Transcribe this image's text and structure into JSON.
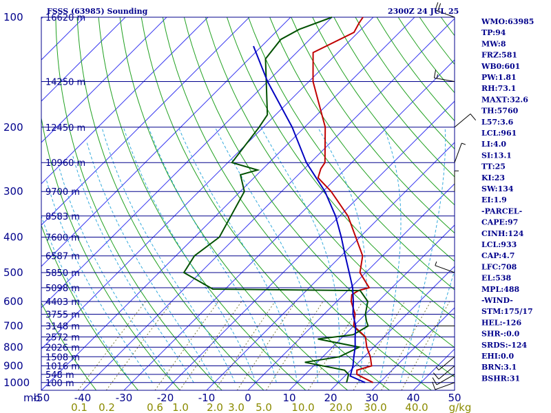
{
  "header": {
    "title": "FSSS (63985) Sounding",
    "time": "2300Z 24 JUL 25"
  },
  "chart_data": {
    "type": "line",
    "chart": "Skew-T log-P sounding",
    "pressure_levels": [
      100,
      200,
      300,
      400,
      500,
      600,
      700,
      800,
      900,
      1000
    ],
    "pressure_labels": [
      "100",
      "200",
      "300",
      "400",
      "500",
      "600",
      "700",
      "800",
      "900",
      "1000"
    ],
    "pressure_unit": "mb",
    "height_lines": [
      {
        "p": 100,
        "label": "16620 m"
      },
      {
        "p": 150,
        "label": "14250 m"
      },
      {
        "p": 200,
        "label": "12450 m"
      },
      {
        "p": 250,
        "label": "10960 m"
      },
      {
        "p": 300,
        "label": "9700 m"
      },
      {
        "p": 350,
        "label": "8583 m"
      },
      {
        "p": 400,
        "label": "7600 m"
      },
      {
        "p": 450,
        "label": "6587 m"
      },
      {
        "p": 500,
        "label": "5850 m"
      },
      {
        "p": 550,
        "label": "5098 m"
      },
      {
        "p": 600,
        "label": "4403 m"
      },
      {
        "p": 650,
        "label": "3755 m"
      },
      {
        "p": 700,
        "label": "3148 m"
      },
      {
        "p": 750,
        "label": "2572 m"
      },
      {
        "p": 800,
        "label": "2026 m"
      },
      {
        "p": 850,
        "label": "1508 m"
      },
      {
        "p": 900,
        "label": "1016 m"
      },
      {
        "p": 950,
        "label": "548 m"
      },
      {
        "p": 1000,
        "label": "100 m"
      }
    ],
    "temperature_ticks": [
      -50,
      -40,
      -30,
      -20,
      -10,
      0,
      10,
      20,
      30,
      40,
      50
    ],
    "temperature_tick_labels": [
      "-50",
      "-40",
      "-30",
      "-20",
      "-10",
      "0",
      "10",
      "20",
      "30",
      "40",
      "50"
    ],
    "mixing_ratio_labels": [
      "0.1",
      "0.2",
      "0.6",
      "1.0",
      "2.0",
      "3.0",
      "5.0",
      "10.0",
      "20.0",
      "30.0",
      "40.0",
      "g/kg"
    ],
    "xlim": [
      -50,
      50
    ],
    "ylim": [
      100,
      1050
    ],
    "series": [
      {
        "key": "temperature",
        "points": [
          [
            1000,
            28.4
          ],
          [
            950,
            22.5
          ],
          [
            925,
            21.5
          ],
          [
            900,
            24.0
          ],
          [
            850,
            21.5
          ],
          [
            800,
            18.3
          ],
          [
            750,
            15.5
          ],
          [
            700,
            10.0
          ],
          [
            650,
            7.5
          ],
          [
            600,
            3.5
          ],
          [
            575,
            2.0
          ],
          [
            560,
            2.6
          ],
          [
            550,
            4.5
          ],
          [
            500,
            -1.4
          ],
          [
            450,
            -4.8
          ],
          [
            400,
            -11.0
          ],
          [
            350,
            -18.0
          ],
          [
            300,
            -28.0
          ],
          [
            275,
            -34.5
          ],
          [
            260,
            -36.0
          ],
          [
            250,
            -36.5
          ],
          [
            200,
            -45.0
          ],
          [
            150,
            -59.0
          ],
          [
            125,
            -66.0
          ],
          [
            110,
            -61.0
          ],
          [
            104,
            -62.0
          ],
          [
            100,
            -62.5
          ]
        ]
      },
      {
        "key": "dewpoint",
        "points": [
          [
            1000,
            22.0
          ],
          [
            950,
            20.5
          ],
          [
            925,
            18.5
          ],
          [
            880,
            7.0
          ],
          [
            850,
            14.0
          ],
          [
            800,
            16.5
          ],
          [
            760,
            4.5
          ],
          [
            740,
            12.0
          ],
          [
            700,
            13.5
          ],
          [
            680,
            12.0
          ],
          [
            650,
            10.0
          ],
          [
            600,
            7.5
          ],
          [
            560,
            3.0
          ],
          [
            555,
            -33.0
          ],
          [
            500,
            -44.0
          ],
          [
            450,
            -45.5
          ],
          [
            400,
            -44.0
          ],
          [
            300,
            -49.0
          ],
          [
            270,
            -54.0
          ],
          [
            262,
            -51.0
          ],
          [
            250,
            -59.0
          ],
          [
            200,
            -61.0
          ],
          [
            185,
            -62.0
          ],
          [
            130,
            -76.0
          ],
          [
            115,
            -77.0
          ],
          [
            108,
            -75.0
          ],
          [
            100,
            -70.0
          ]
        ]
      },
      {
        "key": "parcel",
        "points": [
          [
            1000,
            26.5
          ],
          [
            960,
            21.3
          ],
          [
            933,
            20.5
          ],
          [
            900,
            19.5
          ],
          [
            850,
            17.5
          ],
          [
            800,
            15.5
          ],
          [
            750,
            13.0
          ],
          [
            700,
            10.5
          ],
          [
            650,
            7.0
          ],
          [
            600,
            4.0
          ],
          [
            550,
            0.5
          ],
          [
            500,
            -4.0
          ],
          [
            450,
            -9.0
          ],
          [
            400,
            -14.5
          ],
          [
            350,
            -21.0
          ],
          [
            300,
            -29.5
          ],
          [
            250,
            -41.0
          ],
          [
            200,
            -53.0
          ],
          [
            150,
            -70.0
          ],
          [
            120,
            -82.0
          ]
        ]
      }
    ],
    "wind_barbs": [
      {
        "p": 1000,
        "dir": 250,
        "spd": 10
      },
      {
        "p": 950,
        "dir": 240,
        "spd": 10
      },
      {
        "p": 900,
        "dir": 230,
        "spd": 10
      },
      {
        "p": 850,
        "dir": 230,
        "spd": 5
      },
      {
        "p": 700,
        "dir": 270,
        "spd": 0
      },
      {
        "p": 500,
        "dir": 290,
        "spd": 5
      },
      {
        "p": 300,
        "dir": 0,
        "spd": 5
      },
      {
        "p": 250,
        "dir": 20,
        "spd": 5
      },
      {
        "p": 200,
        "dir": 50,
        "spd": 10
      },
      {
        "p": 150,
        "dir": 280,
        "spd": 15
      },
      {
        "p": 100,
        "dir": 290,
        "spd": 20
      }
    ],
    "indices": [
      "WMO:63985",
      "TP:94",
      "MW:8",
      "FRZ:581",
      "WB0:601",
      "PW:1.81",
      "RH:73.1",
      "MAXT:32.6",
      "TH:5760",
      "L57:3.6",
      "LCL:961",
      "LI:4.0",
      "SI:13.1",
      "TT:25",
      "KI:23",
      "SW:134",
      "EI:1.9",
      "-PARCEL-",
      "CAPE:97",
      "CINH:124",
      "LCL:933",
      "CAP:4.7",
      "LFC:708",
      "EL:538",
      "MPL:488",
      "-WIND-",
      "STM:175/17",
      "HEL:-126",
      "SHR-:0.0",
      "SRDS:-124",
      "EHI:0.0",
      "BRN:3.1",
      "BSHR:31"
    ],
    "colors": {
      "isobar": "#00008b",
      "isotherm": "#3a3af0",
      "dry_adiabat": "#1fa01f",
      "moist_adiabat": "#33aadd",
      "mixing_ratio": "#7a7a3a",
      "temperature": "#c00000",
      "dewpoint": "#005000",
      "parcel": "#0000c0",
      "text": "#00008b",
      "mixing_label": "#8b8b00"
    }
  }
}
